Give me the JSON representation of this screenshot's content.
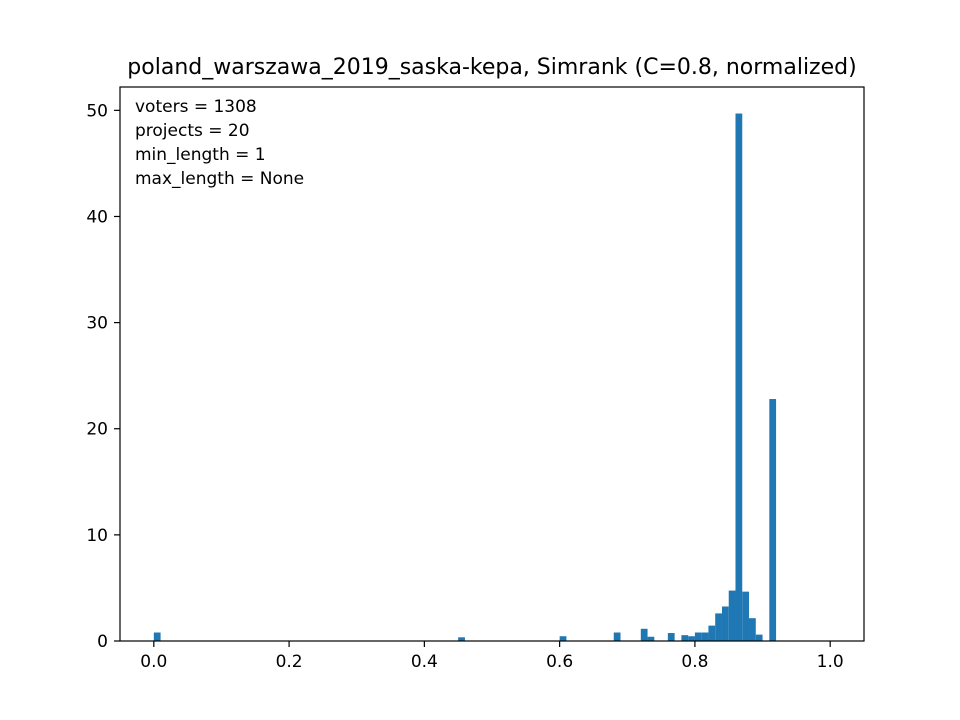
{
  "chart_data": {
    "type": "bar",
    "title": "poland_warszawa_2019_saska-kepa, Simrank (C=0.8, normalized)",
    "xlabel": "",
    "ylabel": "",
    "xlim": [
      -0.05,
      1.05
    ],
    "ylim": [
      0,
      52.2
    ],
    "grid": false,
    "bar_color": "#1f77b4",
    "bin_width": 0.01,
    "x_ticks": [
      0.0,
      0.2,
      0.4,
      0.6,
      0.8,
      1.0
    ],
    "x_tick_labels": [
      "0.0",
      "0.2",
      "0.4",
      "0.6",
      "0.8",
      "1.0"
    ],
    "y_ticks": [
      0,
      10,
      20,
      30,
      40,
      50
    ],
    "y_tick_labels": [
      "0",
      "10",
      "20",
      "30",
      "40",
      "50"
    ],
    "annotation_lines": [
      "voters = 1308",
      "projects = 20",
      "min_length = 1",
      "max_length = None"
    ],
    "bins": [
      {
        "x": 0.0,
        "value": 0.8
      },
      {
        "x": 0.45,
        "value": 0.35
      },
      {
        "x": 0.6,
        "value": 0.45
      },
      {
        "x": 0.68,
        "value": 0.8
      },
      {
        "x": 0.72,
        "value": 1.15
      },
      {
        "x": 0.73,
        "value": 0.4
      },
      {
        "x": 0.76,
        "value": 0.75
      },
      {
        "x": 0.78,
        "value": 0.55
      },
      {
        "x": 0.79,
        "value": 0.45
      },
      {
        "x": 0.8,
        "value": 0.8
      },
      {
        "x": 0.81,
        "value": 0.8
      },
      {
        "x": 0.82,
        "value": 1.45
      },
      {
        "x": 0.83,
        "value": 2.6
      },
      {
        "x": 0.84,
        "value": 3.25
      },
      {
        "x": 0.85,
        "value": 4.75
      },
      {
        "x": 0.86,
        "value": 49.7
      },
      {
        "x": 0.87,
        "value": 4.65
      },
      {
        "x": 0.88,
        "value": 2.15
      },
      {
        "x": 0.89,
        "value": 0.6
      },
      {
        "x": 0.91,
        "value": 22.8
      }
    ]
  }
}
